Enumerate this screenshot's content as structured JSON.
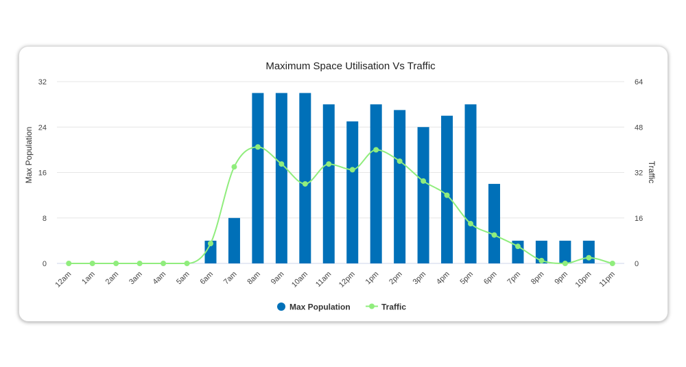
{
  "chart_data": {
    "type": "bar",
    "title": "Maximum Space Utilisation Vs Traffic",
    "categories": [
      "12am",
      "1am",
      "2am",
      "3am",
      "4am",
      "5am",
      "6am",
      "7am",
      "8am",
      "9am",
      "10am",
      "11am",
      "12pm",
      "1pm",
      "2pm",
      "3pm",
      "4pm",
      "5pm",
      "6pm",
      "7pm",
      "8pm",
      "9pm",
      "10pm",
      "11pm"
    ],
    "series": [
      {
        "name": "Max Population",
        "type": "bar",
        "axis": "left",
        "color": "#0070B8",
        "values": [
          0,
          0,
          0,
          0,
          0,
          0,
          4,
          8,
          30,
          30,
          30,
          28,
          25,
          28,
          27,
          24,
          26,
          28,
          14,
          4,
          4,
          4,
          4,
          0
        ]
      },
      {
        "name": "Traffic",
        "type": "line",
        "axis": "right",
        "color": "#90ED7D",
        "values": [
          0,
          0,
          0,
          0,
          0,
          0,
          7,
          34,
          41,
          35,
          28,
          35,
          33,
          40,
          36,
          29,
          24,
          14,
          10,
          6,
          1,
          0,
          2,
          0
        ]
      }
    ],
    "ylabel": "Max Population",
    "y2label": "Traffic",
    "ylim": [
      0,
      32
    ],
    "y2lim": [
      0,
      64
    ],
    "yticks": [
      "0",
      "8",
      "16",
      "24",
      "32"
    ],
    "y2ticks": [
      "0",
      "16",
      "32",
      "48",
      "64"
    ],
    "legend": "bottom-center",
    "grid": true
  }
}
